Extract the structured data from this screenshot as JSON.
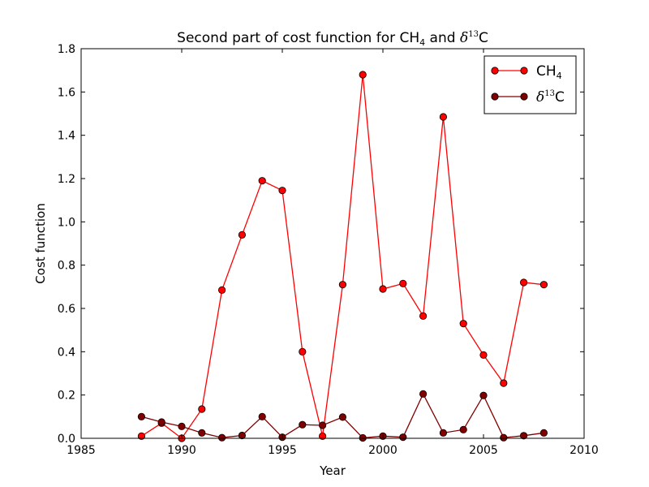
{
  "chart_data": {
    "type": "line",
    "title_parts": {
      "lead": "Second part of cost function for CH",
      "sub": "4",
      "mid": " and ",
      "delta": "δ",
      "sup": "13",
      "tail": "C"
    },
    "xlabel": "Year",
    "ylabel": "Cost function",
    "xlim": [
      1985,
      2010
    ],
    "ylim": [
      0,
      1.8
    ],
    "xticks": [
      "1985",
      "1990",
      "1995",
      "2000",
      "2005",
      "2010"
    ],
    "yticks": [
      "0.0",
      "0.2",
      "0.4",
      "0.6",
      "0.8",
      "1.0",
      "1.2",
      "1.4",
      "1.6",
      "1.8"
    ],
    "grid": false,
    "legend_position": "top-right",
    "x": [
      1988,
      1989,
      1990,
      1991,
      1992,
      1993,
      1994,
      1995,
      1996,
      1997,
      1998,
      1999,
      2000,
      2001,
      2002,
      2003,
      2004,
      2005,
      2006,
      2007,
      2008
    ],
    "series": [
      {
        "legend": {
          "base": "CH",
          "sub": "4"
        },
        "color": "#ff0000",
        "marker_fill": "#ff0000",
        "values": [
          0.01,
          0.07,
          0.0,
          0.135,
          0.685,
          0.94,
          1.19,
          1.145,
          0.4,
          0.01,
          0.71,
          1.68,
          0.69,
          0.715,
          0.565,
          1.485,
          0.53,
          0.385,
          0.255,
          0.72,
          0.71
        ]
      },
      {
        "legend": {
          "delta": "δ",
          "sup": "13",
          "base": "C"
        },
        "color": "#800000",
        "marker_fill": "#7f0000",
        "values": [
          0.1,
          0.075,
          0.055,
          0.025,
          0.003,
          0.013,
          0.1,
          0.005,
          0.063,
          0.06,
          0.098,
          0.002,
          0.01,
          0.005,
          0.205,
          0.025,
          0.04,
          0.198,
          0.003,
          0.012,
          0.025
        ]
      }
    ]
  }
}
